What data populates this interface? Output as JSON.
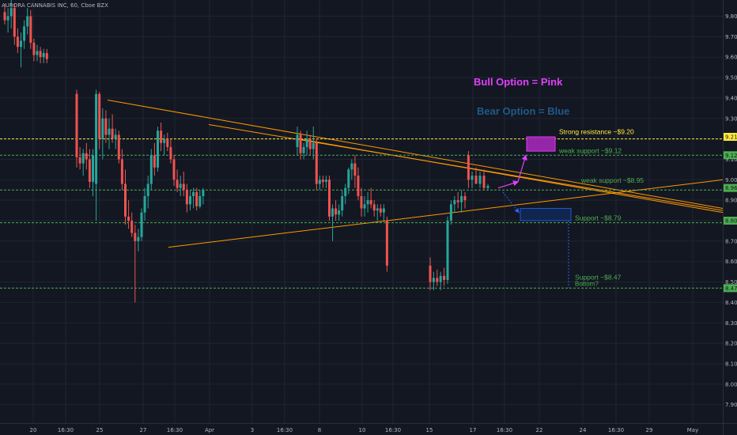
{
  "chart_data": {
    "type": "candlestick",
    "title": "AURORA CANNABIS INC, 60, Cboe BZX",
    "ylim": [
      7.82,
      9.9
    ],
    "y_ticks": [
      9.8,
      9.7,
      9.6,
      9.5,
      9.4,
      9.3,
      9.2,
      9.1,
      9.0,
      8.9,
      8.8,
      8.7,
      8.6,
      8.5,
      8.4,
      8.3,
      8.2,
      8.1,
      8.0,
      7.9
    ],
    "x_ticks": [
      "20",
      "16:30",
      "25",
      "27",
      "16:30",
      "Apr",
      "3",
      "16:30",
      "8",
      "10",
      "16:30",
      "15",
      "17",
      "16:30",
      "22",
      "24",
      "16:30",
      "29",
      "May"
    ],
    "price_labels": [
      "9.21",
      "9.12",
      "8.96",
      "8.80",
      "8.47"
    ],
    "colors": {
      "up": "#26a69a",
      "down": "#ef5350",
      "support": "#4caf50",
      "resistance": "#ffeb3b",
      "trend": "#ff9800",
      "bull": "#9c27b0",
      "bear": "#2962ff"
    },
    "candles": [
      [
        9.82,
        9.86,
        9.76,
        9.78
      ],
      [
        9.78,
        9.84,
        9.72,
        9.8
      ],
      [
        9.8,
        9.88,
        9.74,
        9.84
      ],
      [
        9.84,
        9.86,
        9.66,
        9.7
      ],
      [
        9.7,
        9.74,
        9.62,
        9.65
      ],
      [
        9.65,
        9.72,
        9.55,
        9.68
      ],
      [
        9.68,
        9.78,
        9.64,
        9.75
      ],
      [
        9.75,
        9.84,
        9.71,
        9.8
      ],
      [
        9.8,
        9.83,
        9.64,
        9.67
      ],
      [
        9.67,
        9.69,
        9.58,
        9.61
      ],
      [
        9.61,
        9.66,
        9.58,
        9.63
      ],
      [
        9.63,
        9.65,
        9.57,
        9.6
      ],
      [
        9.6,
        9.64,
        9.57,
        9.62
      ],
      [
        9.62,
        9.64,
        9.57,
        9.59
      ],
      [
        9.42,
        9.44,
        9.06,
        9.11
      ],
      [
        9.11,
        9.16,
        9.05,
        9.08
      ],
      [
        9.08,
        9.15,
        9.02,
        9.13
      ],
      [
        9.13,
        9.18,
        9.05,
        9.1
      ],
      [
        9.1,
        9.15,
        8.96,
        8.99
      ],
      [
        8.99,
        9.15,
        8.92,
        9.12
      ],
      [
        8.98,
        9.44,
        8.8,
        9.42
      ],
      [
        9.42,
        9.43,
        9.15,
        9.2
      ],
      [
        9.2,
        9.35,
        9.1,
        9.3
      ],
      [
        9.3,
        9.34,
        9.18,
        9.22
      ],
      [
        9.22,
        9.3,
        9.15,
        9.25
      ],
      [
        9.25,
        9.32,
        9.18,
        9.2
      ],
      [
        9.2,
        9.25,
        9.15,
        9.22
      ],
      [
        9.22,
        9.24,
        9.08,
        9.1
      ],
      [
        9.1,
        9.15,
        8.95,
        8.98
      ],
      [
        8.98,
        9.05,
        8.78,
        8.82
      ],
      [
        8.82,
        8.9,
        8.76,
        8.8
      ],
      [
        8.8,
        8.84,
        8.72,
        8.74
      ],
      [
        8.74,
        8.78,
        8.4,
        8.7
      ],
      [
        8.7,
        8.76,
        8.65,
        8.72
      ],
      [
        8.72,
        8.86,
        8.7,
        8.84
      ],
      [
        8.84,
        8.96,
        8.8,
        8.92
      ],
      [
        8.92,
        9.02,
        8.86,
        8.98
      ],
      [
        8.98,
        9.15,
        8.95,
        9.12
      ],
      [
        9.12,
        9.18,
        9.02,
        9.06
      ],
      [
        9.06,
        9.26,
        9.04,
        9.24
      ],
      [
        9.24,
        9.28,
        9.14,
        9.18
      ],
      [
        9.18,
        9.22,
        9.12,
        9.2
      ],
      [
        9.2,
        9.23,
        9.14,
        9.16
      ],
      [
        9.16,
        9.2,
        9.08,
        9.1
      ],
      [
        9.1,
        9.12,
        8.97,
        9.0
      ],
      [
        9.0,
        9.05,
        8.94,
        8.96
      ],
      [
        8.96,
        9.02,
        8.92,
        8.98
      ],
      [
        8.98,
        9.04,
        8.92,
        8.95
      ],
      [
        8.95,
        8.98,
        8.84,
        8.88
      ],
      [
        8.88,
        8.95,
        8.85,
        8.92
      ],
      [
        8.92,
        8.96,
        8.86,
        8.94
      ],
      [
        8.94,
        8.96,
        8.85,
        8.87
      ],
      [
        8.87,
        8.95,
        8.86,
        8.92
      ],
      [
        8.92,
        8.96,
        8.88,
        8.95
      ],
      [
        9.16,
        9.26,
        9.12,
        9.22
      ],
      [
        9.22,
        9.24,
        9.1,
        9.13
      ],
      [
        9.13,
        9.18,
        9.1,
        9.16
      ],
      [
        9.16,
        9.24,
        9.12,
        9.2
      ],
      [
        9.2,
        9.22,
        9.12,
        9.15
      ],
      [
        9.15,
        9.26,
        9.1,
        9.18
      ],
      [
        9.18,
        9.2,
        8.95,
        8.98
      ],
      [
        8.98,
        9.02,
        8.95,
        9.0
      ],
      [
        9.0,
        9.02,
        8.96,
        8.99
      ],
      [
        8.99,
        9.02,
        8.96,
        9.0
      ],
      [
        9.0,
        9.02,
        8.8,
        8.82
      ],
      [
        8.82,
        8.88,
        8.7,
        8.86
      ],
      [
        8.86,
        8.9,
        8.8,
        8.83
      ],
      [
        8.83,
        8.88,
        8.8,
        8.85
      ],
      [
        8.85,
        8.95,
        8.82,
        8.92
      ],
      [
        8.92,
        8.98,
        8.88,
        8.96
      ],
      [
        8.96,
        9.06,
        8.93,
        9.05
      ],
      [
        9.05,
        9.1,
        9.0,
        9.08
      ],
      [
        9.08,
        9.12,
        8.96,
        9.02
      ],
      [
        9.02,
        9.06,
        8.9,
        8.92
      ],
      [
        8.92,
        8.96,
        8.82,
        8.86
      ],
      [
        8.86,
        8.92,
        8.82,
        8.88
      ],
      [
        8.88,
        8.94,
        8.84,
        8.9
      ],
      [
        8.9,
        8.96,
        8.86,
        8.88
      ],
      [
        8.88,
        8.9,
        8.82,
        8.85
      ],
      [
        8.85,
        8.88,
        8.8,
        8.86
      ],
      [
        8.86,
        8.88,
        8.82,
        8.84
      ],
      [
        8.84,
        8.88,
        8.8,
        8.86
      ],
      [
        8.8,
        8.82,
        8.55,
        8.58
      ],
      [
        8.58,
        8.62,
        8.46,
        8.5
      ],
      [
        8.5,
        8.55,
        8.46,
        8.52
      ],
      [
        8.52,
        8.56,
        8.48,
        8.5
      ],
      [
        8.5,
        8.55,
        8.46,
        8.53
      ],
      [
        8.53,
        8.57,
        8.48,
        8.51
      ],
      [
        8.51,
        8.82,
        8.49,
        8.8
      ],
      [
        8.8,
        8.9,
        8.78,
        8.88
      ],
      [
        8.88,
        8.92,
        8.84,
        8.9
      ],
      [
        8.9,
        8.94,
        8.86,
        8.89
      ],
      [
        8.89,
        8.95,
        8.84,
        8.92
      ],
      [
        8.92,
        8.94,
        8.86,
        8.9
      ],
      [
        9.12,
        9.14,
        8.96,
        9.0
      ],
      [
        9.0,
        9.04,
        8.96,
        9.02
      ],
      [
        9.02,
        9.06,
        8.98,
        8.98
      ],
      [
        8.98,
        9.04,
        8.96,
        9.02
      ],
      [
        9.02,
        9.05,
        8.95,
        8.96
      ],
      [
        8.96,
        8.98,
        8.95,
        8.97
      ]
    ],
    "lines": [
      {
        "label": "Strong resistance ~$9.20",
        "value": 9.2,
        "color": "#ffeb3b"
      },
      {
        "label": "weak support ~$9.12",
        "value": 9.12,
        "color": "#4caf50"
      },
      {
        "label": "weak support ~$8.95",
        "value": 8.95,
        "color": "#4caf50"
      },
      {
        "label": "Support ~$8.79",
        "value": 8.79,
        "color": "#4caf50"
      },
      {
        "label": "Support ~$8.47",
        "value": 8.47,
        "color": "#4caf50"
      }
    ],
    "bottom_label": "Bottom?",
    "legend": [
      {
        "label": "Bull Option = Pink",
        "color": "#e040fb"
      },
      {
        "label": "Bear Option = Blue",
        "color": "#1e5a8a"
      }
    ]
  }
}
